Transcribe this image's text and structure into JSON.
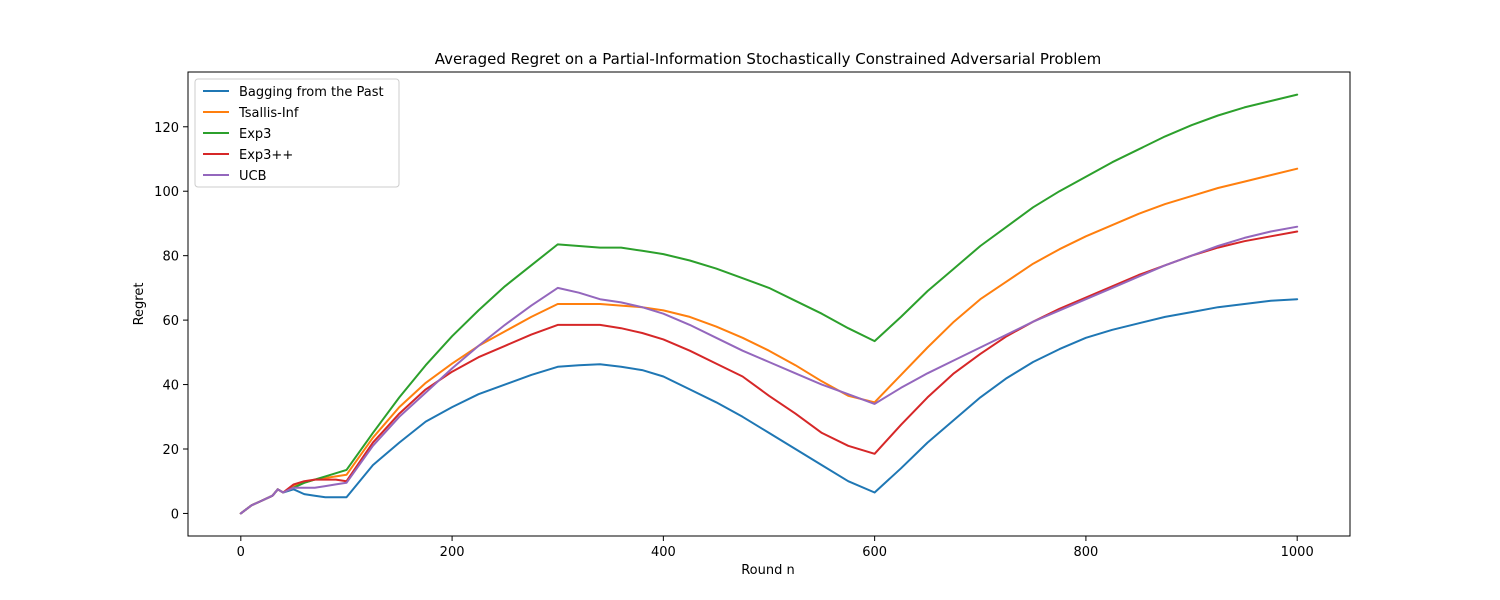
{
  "chart_data": {
    "type": "line",
    "title": "Averaged Regret on a Partial-Information Stochastically Constrained Adversarial Problem",
    "xlabel": "Round n",
    "ylabel": "Regret",
    "xlim": [
      -50,
      1050
    ],
    "ylim": [
      -7,
      137
    ],
    "xticks": [
      0,
      200,
      400,
      600,
      800,
      1000
    ],
    "yticks": [
      0,
      20,
      40,
      60,
      80,
      100,
      120
    ],
    "xtick_labels": [
      "0",
      "200",
      "400",
      "600",
      "800",
      "1000"
    ],
    "ytick_labels": [
      "0",
      "20",
      "40",
      "60",
      "80",
      "100",
      "120"
    ],
    "grid": false,
    "legend_position": "top-left",
    "x": [
      0,
      10,
      20,
      30,
      35,
      40,
      50,
      60,
      70,
      80,
      90,
      100,
      125,
      150,
      175,
      200,
      225,
      250,
      275,
      300,
      320,
      340,
      360,
      380,
      400,
      425,
      450,
      475,
      500,
      525,
      550,
      575,
      600,
      625,
      650,
      675,
      700,
      725,
      750,
      775,
      800,
      825,
      850,
      875,
      900,
      925,
      950,
      975,
      1000
    ],
    "series": [
      {
        "name": "Bagging from the Past",
        "color": "#1f77b4",
        "values": [
          0,
          2.5,
          4,
          5.5,
          7.5,
          6.5,
          7.5,
          6,
          5.5,
          5,
          5,
          5,
          15,
          22,
          28.5,
          33,
          37,
          40,
          43,
          45.5,
          46,
          46.3,
          45.5,
          44.5,
          42.5,
          38.5,
          34.5,
          30,
          25,
          20,
          15,
          10,
          6.5,
          14,
          22,
          29,
          36,
          42,
          47,
          51,
          54.5,
          57,
          59,
          61,
          62.5,
          64,
          65,
          66,
          66.5
        ]
      },
      {
        "name": "Tsallis-Inf",
        "color": "#ff7f0e",
        "values": [
          0,
          2.5,
          4,
          5.5,
          7.5,
          6.5,
          8.5,
          9.5,
          10.5,
          11,
          11.5,
          12,
          23.5,
          33,
          40.5,
          46.5,
          52,
          56.5,
          61,
          65,
          65,
          65,
          64.5,
          64,
          63,
          61,
          58,
          54.5,
          50.5,
          46,
          41,
          36.5,
          34.5,
          43,
          51.5,
          59.5,
          66.5,
          72,
          77.5,
          82,
          86,
          89.5,
          93,
          96,
          98.5,
          101,
          103,
          105,
          107
        ]
      },
      {
        "name": "Exp3",
        "color": "#2ca02c",
        "values": [
          0,
          2.5,
          4,
          5.5,
          7.5,
          6.5,
          8,
          9.5,
          10.5,
          11.5,
          12.5,
          13.5,
          25,
          36,
          46,
          55,
          63,
          70.5,
          77,
          83.5,
          83,
          82.5,
          82.5,
          81.5,
          80.5,
          78.5,
          76,
          73,
          70,
          66,
          62,
          57.5,
          53.5,
          61,
          69,
          76,
          83,
          89,
          95,
          100,
          104.5,
          109,
          113,
          117,
          120.5,
          123.5,
          126,
          128,
          130
        ]
      },
      {
        "name": "Exp3++",
        "color": "#d62728",
        "values": [
          0,
          2.5,
          4,
          5.5,
          7.5,
          6.5,
          9,
          10,
          10.5,
          10.5,
          10.5,
          10,
          22,
          31,
          38.5,
          44,
          48.5,
          52,
          55.5,
          58.5,
          58.5,
          58.5,
          57.5,
          56,
          54,
          50.5,
          46.5,
          42.5,
          36.5,
          31,
          25,
          21,
          18.5,
          27.5,
          36,
          43.5,
          49.5,
          55,
          59.5,
          63.5,
          67,
          70.5,
          74,
          77,
          80,
          82.5,
          84.5,
          86,
          87.5
        ]
      },
      {
        "name": "UCB",
        "color": "#9467bd",
        "values": [
          0,
          2.5,
          4,
          5.5,
          7.5,
          6.5,
          8,
          8,
          8,
          8.5,
          9,
          9.5,
          21,
          30,
          37.5,
          45,
          52,
          58.5,
          64.5,
          70,
          68.5,
          66.5,
          65.5,
          64,
          62,
          58.5,
          54.5,
          50.5,
          47,
          43.5,
          40,
          37,
          34,
          39,
          43.5,
          47.5,
          51.5,
          55.5,
          59.5,
          63,
          66.5,
          70,
          73.5,
          77,
          80,
          83,
          85.5,
          87.5,
          89
        ]
      }
    ]
  }
}
